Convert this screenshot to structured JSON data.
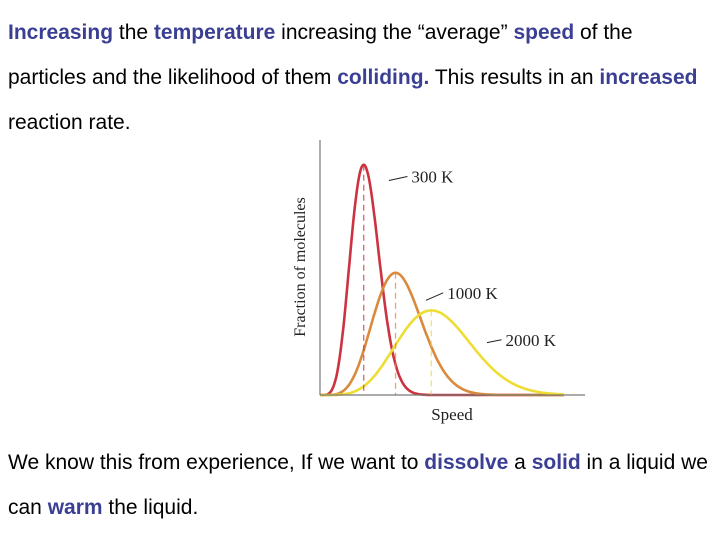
{
  "paragraph1": {
    "segments": [
      {
        "text": "Increasing",
        "highlight": true
      },
      {
        "text": " the ",
        "highlight": false
      },
      {
        "text": "temperature",
        "highlight": true
      },
      {
        "text": " increasing the “average” ",
        "highlight": false
      },
      {
        "text": "speed",
        "highlight": true
      },
      {
        "text": " of the particles and the likelihood of them ",
        "highlight": false
      },
      {
        "text": "colliding.",
        "highlight": true
      },
      {
        "text": "  This results in an ",
        "highlight": false
      },
      {
        "text": "increased",
        "highlight": true
      },
      {
        "text": " reaction rate.",
        "highlight": false
      }
    ]
  },
  "paragraph2": {
    "segments": [
      {
        "text": "We know this from experience, If we want to ",
        "highlight": false
      },
      {
        "text": "dissolve",
        "highlight": true
      },
      {
        "text": " a ",
        "highlight": false
      },
      {
        "text": "solid",
        "highlight": true
      },
      {
        "text": " in a liquid we can ",
        "highlight": false
      },
      {
        "text": "warm",
        "highlight": true
      },
      {
        "text": " the liquid.",
        "highlight": false
      }
    ]
  },
  "colors": {
    "highlight": "#3b3f93",
    "axis": "#777777"
  },
  "chart_data": {
    "type": "line",
    "xlabel": "Speed",
    "ylabel": "Fraction of molecules",
    "xlim": [
      0,
      1
    ],
    "ylim": [
      0,
      1
    ],
    "grid": false,
    "series": [
      {
        "name": "300 K",
        "color": "#cc3340",
        "peak_x": 0.165,
        "peak_y": 0.98,
        "width": 0.062
      },
      {
        "name": "1000 K",
        "color": "#d98a3c",
        "peak_x": 0.285,
        "peak_y": 0.52,
        "width": 0.105
      },
      {
        "name": "2000 K",
        "color": "#eedd33",
        "peak_x": 0.42,
        "peak_y": 0.36,
        "width": 0.16
      }
    ]
  }
}
